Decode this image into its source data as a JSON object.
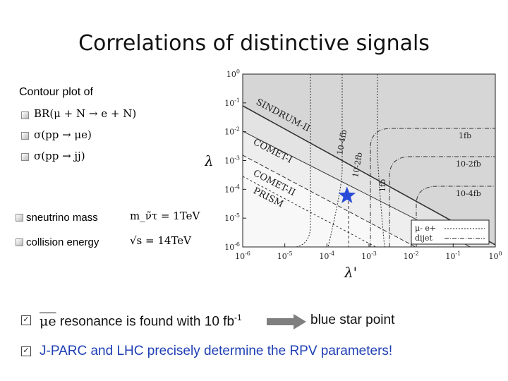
{
  "slide": {
    "title": "Correlations of distinctive signals",
    "contour_label": "Contour plot of",
    "formulas": [
      "BR(μ + N → e + N)",
      "σ(pp → μe)",
      "σ(pp → jj)"
    ],
    "params": [
      {
        "label": "sneutrino mass",
        "value": "m_ν̃τ = 1TeV"
      },
      {
        "label": "collision energy",
        "value": "√s = 14TeV"
      }
    ],
    "conclusions": [
      {
        "text_prefix": "μe",
        "text": " resonance is found with 10 fb",
        "sup": "-1",
        "result": "blue star point"
      },
      {
        "text": "J-PARC and LHC precisely determine the RPV parameters!"
      }
    ]
  },
  "chart_data": {
    "type": "contour",
    "xlabel": "λ'",
    "ylabel": "λ",
    "x_ticks": [
      "10-6",
      "10-5",
      "10-4",
      "10-3",
      "10-2",
      "10-1",
      "100"
    ],
    "y_ticks": [
      "100",
      "10-1",
      "10-2",
      "10-3",
      "10-4",
      "10-5",
      "10-6"
    ],
    "xlim": [
      1e-06,
      1
    ],
    "ylim": [
      1e-06,
      1
    ],
    "log_x": true,
    "log_y": true,
    "region_labels": [
      "SINDRUM-II",
      "COMET-I",
      "COMET-II",
      "PRISM"
    ],
    "contour_labels": [
      "10-4fb",
      "10-2fb",
      "1fb",
      "1fb",
      "10-2fb",
      "10-4fb"
    ],
    "legend": [
      "μ- e+",
      "dijet"
    ],
    "legend_position": "bottom-right",
    "marker": {
      "x": 0.0003,
      "y": 6e-05,
      "color": "#2a4bd7"
    }
  }
}
